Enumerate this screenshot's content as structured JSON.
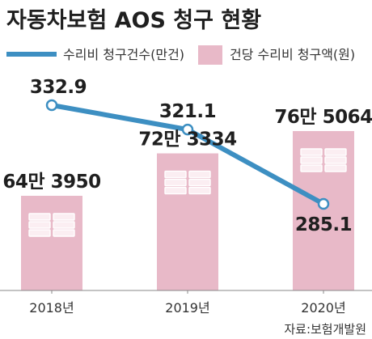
{
  "chart_data": {
    "type": "bar",
    "title": "자동차보험 AOS 청구 현황",
    "categories": [
      "2018년",
      "2019년",
      "2020년"
    ],
    "series": [
      {
        "name": "건당 수리비 청구액(원)",
        "kind": "bar",
        "values": [
          643950,
          723334,
          765064
        ],
        "labels": [
          "64만 3950",
          "72만 3334",
          "76만 5064"
        ],
        "color": "#e8b9c8"
      },
      {
        "name": "수리비 청구건수(만건)",
        "kind": "line",
        "values": [
          332.9,
          321.1,
          285.1
        ],
        "labels": [
          "332.9",
          "321.1",
          "285.1"
        ],
        "color": "#3d8fc2"
      }
    ],
    "source": "자료:보험개발원"
  }
}
